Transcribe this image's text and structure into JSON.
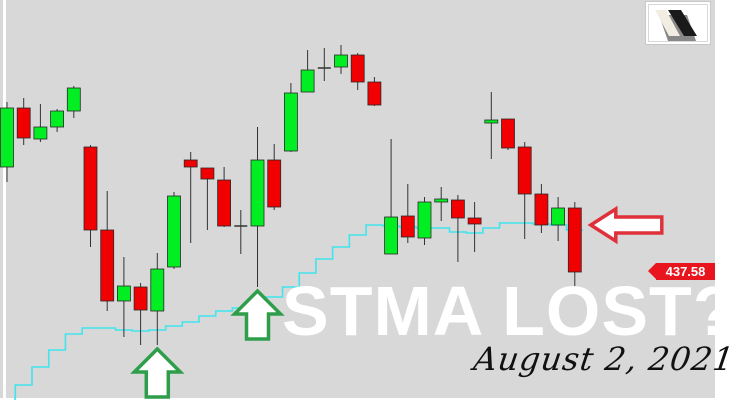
{
  "chart_data": {
    "type": "candlestick",
    "title": "",
    "xlabel": "",
    "ylabel": "",
    "ylim": [
      435.02,
      443.02
    ],
    "grid": false,
    "colors": {
      "background": "#d8d8d8",
      "up": "#00ee22",
      "down": "#f00000",
      "wick": "#333333",
      "ma": "#40e4ee"
    },
    "last_price_label": "437.58",
    "candles": [
      {
        "o": 439.68,
        "h": 440.98,
        "l": 439.38,
        "c": 440.86
      },
      {
        "o": 440.86,
        "h": 441.06,
        "l": 440.12,
        "c": 440.26
      },
      {
        "o": 440.24,
        "h": 440.94,
        "l": 440.18,
        "c": 440.48
      },
      {
        "o": 440.48,
        "h": 440.84,
        "l": 440.38,
        "c": 440.8
      },
      {
        "o": 440.8,
        "h": 441.3,
        "l": 440.66,
        "c": 441.26
      },
      {
        "o": 440.08,
        "h": 440.12,
        "l": 438.08,
        "c": 438.42
      },
      {
        "o": 438.42,
        "h": 439.2,
        "l": 436.8,
        "c": 437.0
      },
      {
        "o": 437.0,
        "h": 437.88,
        "l": 436.28,
        "c": 437.3
      },
      {
        "o": 437.28,
        "h": 437.36,
        "l": 436.12,
        "c": 436.82
      },
      {
        "o": 436.8,
        "h": 437.96,
        "l": 436.12,
        "c": 437.64
      },
      {
        "o": 437.68,
        "h": 439.18,
        "l": 437.64,
        "c": 439.1
      },
      {
        "o": 439.82,
        "h": 439.98,
        "l": 438.16,
        "c": 439.68
      },
      {
        "o": 439.66,
        "h": 439.66,
        "l": 438.42,
        "c": 439.44
      },
      {
        "o": 439.42,
        "h": 439.68,
        "l": 438.48,
        "c": 438.5
      },
      {
        "o": 438.5,
        "h": 438.82,
        "l": 437.94,
        "c": 438.5
      },
      {
        "o": 438.5,
        "h": 440.48,
        "l": 437.28,
        "c": 439.82
      },
      {
        "o": 439.82,
        "h": 440.14,
        "l": 438.82,
        "c": 438.88
      },
      {
        "o": 440.0,
        "h": 441.36,
        "l": 439.98,
        "c": 441.16
      },
      {
        "o": 441.18,
        "h": 442.02,
        "l": 441.18,
        "c": 441.62
      },
      {
        "o": 441.66,
        "h": 442.06,
        "l": 441.4,
        "c": 441.66
      },
      {
        "o": 441.68,
        "h": 442.12,
        "l": 441.54,
        "c": 441.92
      },
      {
        "o": 441.92,
        "h": 441.96,
        "l": 441.22,
        "c": 441.38
      },
      {
        "o": 441.38,
        "h": 441.48,
        "l": 440.9,
        "c": 440.92
      },
      {
        "o": 437.94,
        "h": 440.24,
        "l": 437.94,
        "c": 438.68
      },
      {
        "o": 438.7,
        "h": 439.34,
        "l": 438.16,
        "c": 438.28
      },
      {
        "o": 438.26,
        "h": 439.08,
        "l": 438.12,
        "c": 438.98
      },
      {
        "o": 438.98,
        "h": 439.28,
        "l": 438.6,
        "c": 439.04
      },
      {
        "o": 439.02,
        "h": 439.12,
        "l": 437.78,
        "c": 438.66
      },
      {
        "o": 438.66,
        "h": 438.98,
        "l": 437.98,
        "c": 438.54
      },
      {
        "o": 440.56,
        "h": 441.18,
        "l": 439.84,
        "c": 440.62
      },
      {
        "o": 440.64,
        "h": 440.64,
        "l": 440.02,
        "c": 440.06
      },
      {
        "o": 440.08,
        "h": 440.18,
        "l": 438.24,
        "c": 439.14
      },
      {
        "o": 439.14,
        "h": 439.34,
        "l": 438.36,
        "c": 438.52
      },
      {
        "o": 438.52,
        "h": 439.08,
        "l": 438.2,
        "c": 438.86
      },
      {
        "o": 438.86,
        "h": 438.98,
        "l": 437.18,
        "c": 437.58
      }
    ],
    "moving_average": [
      435.06,
      435.32,
      435.68,
      436.02,
      436.34,
      436.46,
      436.46,
      436.42,
      436.4,
      436.42,
      436.5,
      436.58,
      436.7,
      436.8,
      436.86,
      436.94,
      437.08,
      437.28,
      437.56,
      437.84,
      438.08,
      438.32,
      438.52,
      438.5,
      438.48,
      438.46,
      438.46,
      438.38,
      438.36,
      438.46,
      438.56,
      438.56,
      438.54,
      438.52,
      438.42
    ],
    "annotations": {
      "up_arrows_at_candles": [
        10,
        16
      ],
      "left_arrow_at_candle": 35,
      "up_arrow_color": "#2e9e4a",
      "left_arrow_color": "#e0303a"
    }
  },
  "overlay": {
    "headline": "STMA LOST?",
    "date": "August 2, 2021"
  },
  "logo": {
    "icon": "parallelogram-logo-icon"
  }
}
